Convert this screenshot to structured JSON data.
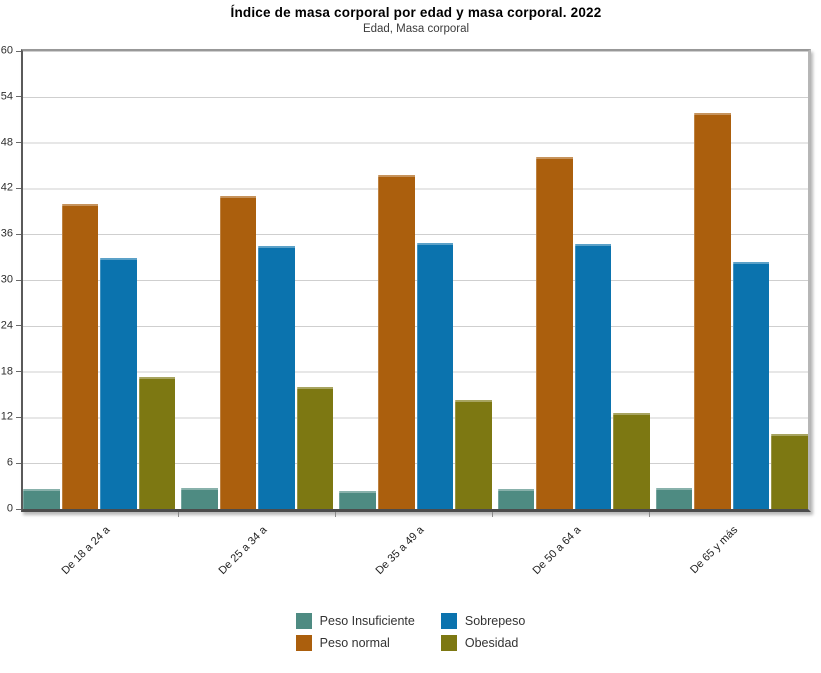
{
  "chart_data": {
    "type": "bar",
    "title": "Índice de masa corporal por edad y masa corporal. 2022",
    "subtitle": "Edad, Masa corporal",
    "categories": [
      "De 18 a 24 a",
      "De 25 a 34 a",
      "De 35 a 49 a",
      "De 50 a 64 a",
      "De 65 y más"
    ],
    "series": [
      {
        "name": "Peso Insuficiente",
        "color": "#4E8B82",
        "values": [
          2.6,
          2.8,
          2.4,
          2.6,
          2.8
        ]
      },
      {
        "name": "Peso normal",
        "color": "#AB5F0D",
        "values": [
          40.0,
          41.0,
          43.7,
          46.1,
          51.9
        ]
      },
      {
        "name": "Sobrepeso",
        "color": "#0B73AE",
        "values": [
          32.9,
          34.4,
          34.9,
          34.7,
          32.4
        ]
      },
      {
        "name": "Obesidad",
        "color": "#7D7812",
        "values": [
          17.3,
          16.0,
          14.3,
          12.6,
          9.8
        ]
      }
    ],
    "ylim": [
      0,
      60
    ],
    "yticks": [
      0,
      6,
      12,
      18,
      24,
      30,
      36,
      42,
      48,
      54,
      60
    ],
    "grid": true,
    "legend_position": "bottom",
    "background": "#ffffff",
    "gridline_color": "#cfcfcf"
  }
}
